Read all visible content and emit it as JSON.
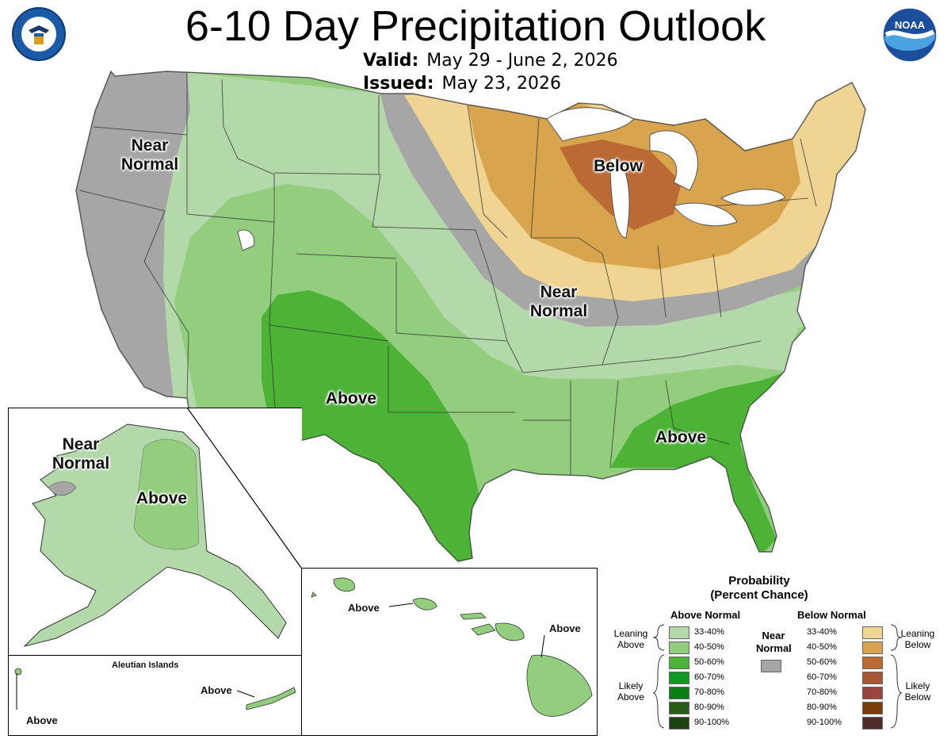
{
  "header": {
    "title": "6-10 Day Precipitation Outlook",
    "valid_label": "Valid:",
    "valid_value": "May 29 - June 2, 2026",
    "issued_label": "Issued:",
    "issued_value": "May 23, 2026"
  },
  "logos": {
    "left": "department-of-commerce-seal",
    "right": "noaa-logo"
  },
  "map_labels": {
    "west_near_normal": [
      "Near",
      "Normal"
    ],
    "central_near_normal": [
      "Near",
      "Normal"
    ],
    "below": "Below",
    "southwest_above": "Above",
    "southeast_above": "Above",
    "alaska_near_normal": [
      "Near",
      "Normal"
    ],
    "alaska_above": "Above",
    "aleutian_title": "Aleutian Islands",
    "aleutian_above_east": "Above",
    "aleutian_above_west": "Above",
    "hawaii_above_west": "Above",
    "hawaii_above_east": "Above"
  },
  "legend": {
    "title": [
      "Probability",
      "(Percent Chance)"
    ],
    "above_heading": "Above Normal",
    "below_heading": "Below Normal",
    "near_heading": [
      "Near",
      "Normal"
    ],
    "leaning_above": [
      "Leaning",
      "Above"
    ],
    "likely_above": [
      "Likely",
      "Above"
    ],
    "leaning_below": [
      "Leaning",
      "Below"
    ],
    "likely_below": [
      "Likely",
      "Below"
    ],
    "above_scale": [
      {
        "label": "33-40%",
        "color": "#b3d9ab"
      },
      {
        "label": "40-50%",
        "color": "#93cd7e"
      },
      {
        "label": "50-60%",
        "color": "#4cb336"
      },
      {
        "label": "60-70%",
        "color": "#0f9a24"
      },
      {
        "label": "70-80%",
        "color": "#0a7d16"
      },
      {
        "label": "80-90%",
        "color": "#285d18"
      },
      {
        "label": "90-100%",
        "color": "#1f4414"
      }
    ],
    "below_scale": [
      {
        "label": "33-40%",
        "color": "#f0d493"
      },
      {
        "label": "40-50%",
        "color": "#d8a44d"
      },
      {
        "label": "50-60%",
        "color": "#bb6a34"
      },
      {
        "label": "60-70%",
        "color": "#a65535"
      },
      {
        "label": "70-80%",
        "color": "#9a4440"
      },
      {
        "label": "80-90%",
        "color": "#7b3c0a"
      },
      {
        "label": "90-100%",
        "color": "#4e2c2a"
      }
    ],
    "near_color": "#a6a6a6"
  }
}
